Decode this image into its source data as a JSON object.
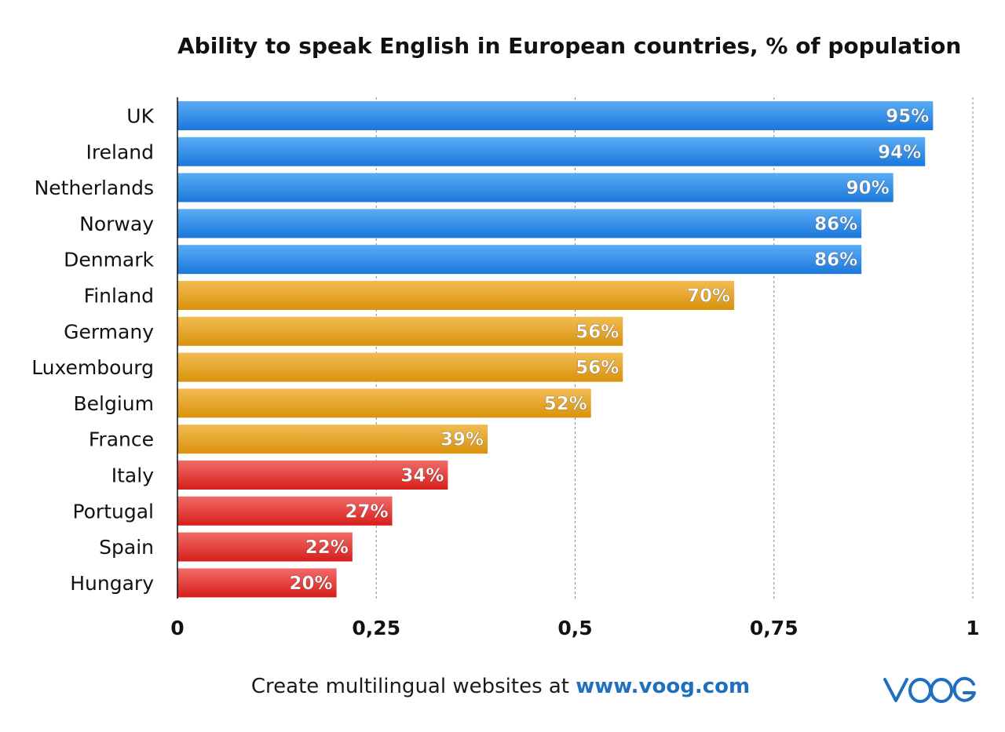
{
  "chart_data": {
    "type": "bar",
    "orientation": "horizontal",
    "title": "Ability to speak English in European countries, % of population",
    "categories": [
      "UK",
      "Ireland",
      "Netherlands",
      "Norway",
      "Denmark",
      "Finland",
      "Germany",
      "Luxembourg",
      "Belgium",
      "France",
      "Italy",
      "Portugal",
      "Spain",
      "Hungary"
    ],
    "values": [
      0.95,
      0.94,
      0.9,
      0.86,
      0.86,
      0.7,
      0.56,
      0.56,
      0.52,
      0.39,
      0.34,
      0.27,
      0.22,
      0.2
    ],
    "data_labels": [
      "95%",
      "94%",
      "90%",
      "86%",
      "86%",
      "70%",
      "56%",
      "56%",
      "52%",
      "39%",
      "34%",
      "27%",
      "22%",
      "20%"
    ],
    "bar_groups": [
      "blue",
      "blue",
      "blue",
      "blue",
      "blue",
      "orange",
      "orange",
      "orange",
      "orange",
      "orange",
      "red",
      "red",
      "red",
      "red"
    ],
    "group_colors": {
      "blue": [
        "#5aacf5",
        "#1a78db"
      ],
      "orange": [
        "#f2bc52",
        "#d9920c"
      ],
      "red": [
        "#f26b68",
        "#d61e1a"
      ]
    },
    "xlim": [
      0,
      1
    ],
    "xticks": [
      0,
      0.25,
      0.5,
      0.75,
      1
    ],
    "xtick_labels": [
      "0",
      "0,25",
      "0,5",
      "0,75",
      "1"
    ],
    "xlabel": "",
    "ylabel": "",
    "grid": "vertical-dashed",
    "legend": "none"
  },
  "footer": {
    "text": "Create multilingual websites at ",
    "link": "www.voog.com"
  },
  "logo": {
    "text": "VOOG",
    "color": "#1f6fc1"
  }
}
